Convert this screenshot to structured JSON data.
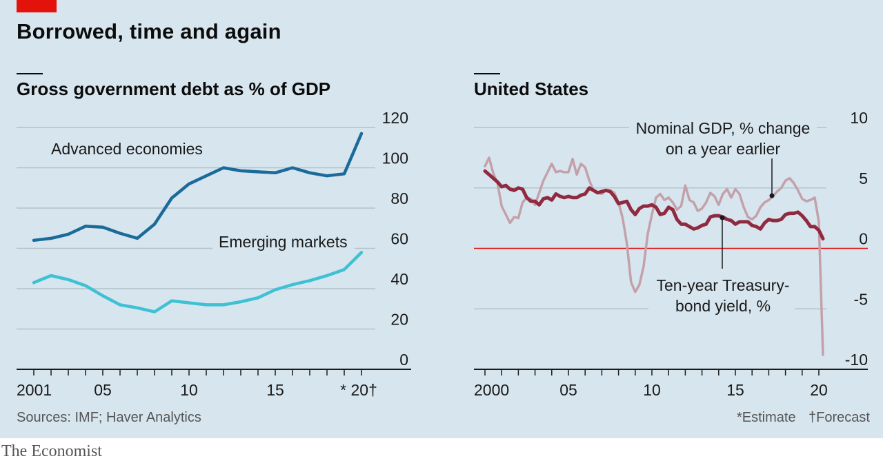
{
  "header": {
    "title": "Borrowed, time and again"
  },
  "footer": {
    "sources": "Sources: IMF; Haver Analytics",
    "estimate_note": "*Estimate",
    "forecast_note": "†Forecast",
    "brand": "The Economist"
  },
  "colors": {
    "background": "#d7e5ee",
    "brand_red": "#e3120b",
    "advanced": "#1a6b9a",
    "emerging": "#3ec1d3",
    "gdp": "#c4a1aa",
    "yield": "#8f2a40",
    "zero_line": "#e3120b",
    "grid": "#b4c2cc"
  },
  "chart_data": [
    {
      "type": "line",
      "title": "Gross government debt as % of GDP",
      "x_tick_labels": [
        "2001",
        "05",
        "10",
        "15",
        "* 20†"
      ],
      "y_tick_labels": [
        "0",
        "20",
        "40",
        "60",
        "80",
        "100",
        "120"
      ],
      "ylim": [
        0,
        120
      ],
      "xlim": [
        2001,
        2020
      ],
      "grid": true,
      "x": [
        2001,
        2002,
        2003,
        2004,
        2005,
        2006,
        2007,
        2008,
        2009,
        2010,
        2011,
        2012,
        2013,
        2014,
        2015,
        2016,
        2017,
        2018,
        2019,
        2020
      ],
      "series": [
        {
          "name": "Advanced economies",
          "values": [
            64,
            65,
            67,
            71,
            70.5,
            67.5,
            65,
            72,
            85,
            92,
            96,
            100,
            98.5,
            98,
            97.5,
            100,
            97.5,
            96,
            97,
            117
          ]
        },
        {
          "name": "Emerging markets",
          "values": [
            43,
            46.5,
            44.5,
            41.5,
            36.5,
            32,
            30.5,
            28.5,
            34,
            33,
            32,
            32,
            33.5,
            35.5,
            39.5,
            42,
            44,
            46.5,
            49.5,
            58
          ]
        }
      ],
      "notes": "2019 is an estimate (*); 2020 is a forecast (†)"
    },
    {
      "type": "line",
      "title": "United States",
      "x_tick_labels": [
        "2000",
        "05",
        "10",
        "15",
        "20"
      ],
      "y_tick_labels": [
        "10",
        "5",
        "0",
        "-5",
        "-10"
      ],
      "ylim": [
        -10,
        10
      ],
      "xlim": [
        2000,
        2020.25
      ],
      "grid": true,
      "x": [
        2000.0,
        2000.25,
        2000.5,
        2000.75,
        2001.0,
        2001.25,
        2001.5,
        2001.75,
        2002.0,
        2002.25,
        2002.5,
        2002.75,
        2003.0,
        2003.25,
        2003.5,
        2003.75,
        2004.0,
        2004.25,
        2004.5,
        2004.75,
        2005.0,
        2005.25,
        2005.5,
        2005.75,
        2006.0,
        2006.25,
        2006.5,
        2006.75,
        2007.0,
        2007.25,
        2007.5,
        2007.75,
        2008.0,
        2008.25,
        2008.5,
        2008.75,
        2009.0,
        2009.25,
        2009.5,
        2009.75,
        2010.0,
        2010.25,
        2010.5,
        2010.75,
        2011.0,
        2011.25,
        2011.5,
        2011.75,
        2012.0,
        2012.25,
        2012.5,
        2012.75,
        2013.0,
        2013.25,
        2013.5,
        2013.75,
        2014.0,
        2014.25,
        2014.5,
        2014.75,
        2015.0,
        2015.25,
        2015.5,
        2015.75,
        2016.0,
        2016.25,
        2016.5,
        2016.75,
        2017.0,
        2017.25,
        2017.5,
        2017.75,
        2018.0,
        2018.25,
        2018.5,
        2018.75,
        2019.0,
        2019.25,
        2019.5,
        2019.75,
        2020.0,
        2020.25
      ],
      "series": [
        {
          "name": "Nominal GDP, % change on a year earlier",
          "values": [
            6.8,
            7.5,
            6.2,
            5.4,
            3.5,
            2.8,
            2.1,
            2.6,
            2.5,
            3.8,
            4.2,
            4.1,
            3.6,
            4.6,
            5.6,
            6.3,
            7.0,
            6.3,
            6.4,
            6.3,
            6.3,
            7.4,
            6.1,
            7.0,
            6.7,
            5.6,
            4.8,
            4.6,
            4.5,
            4.8,
            4.8,
            4.6,
            3.8,
            2.5,
            0.4,
            -2.8,
            -3.6,
            -3.0,
            -1.5,
            1.2,
            2.8,
            4.2,
            4.5,
            4.0,
            4.2,
            3.8,
            3.2,
            3.5,
            5.2,
            4.0,
            3.8,
            3.1,
            3.3,
            3.8,
            4.6,
            4.3,
            3.6,
            4.5,
            4.9,
            4.2,
            4.9,
            4.5,
            3.4,
            2.6,
            2.4,
            2.7,
            3.4,
            3.8,
            4.0,
            4.3,
            4.7,
            5.0,
            5.6,
            5.8,
            5.4,
            4.8,
            4.1,
            3.9,
            4.0,
            4.2,
            2.2,
            -8.8
          ],
          "style": "thin"
        },
        {
          "name": "Ten-year Treasury-bond yield, %",
          "values": [
            6.4,
            6.1,
            5.8,
            5.5,
            5.1,
            5.2,
            4.9,
            4.8,
            5.0,
            4.9,
            4.2,
            3.9,
            3.9,
            3.6,
            4.1,
            4.2,
            4.0,
            4.5,
            4.3,
            4.2,
            4.3,
            4.2,
            4.2,
            4.4,
            4.5,
            5.0,
            4.8,
            4.6,
            4.7,
            4.8,
            4.7,
            4.3,
            3.7,
            3.8,
            3.9,
            3.2,
            2.8,
            3.3,
            3.5,
            3.5,
            3.6,
            3.4,
            2.8,
            2.9,
            3.4,
            3.2,
            2.4,
            2.0,
            2.0,
            1.8,
            1.6,
            1.7,
            1.9,
            2.0,
            2.6,
            2.7,
            2.7,
            2.6,
            2.4,
            2.3,
            2.0,
            2.2,
            2.2,
            2.2,
            1.9,
            1.8,
            1.6,
            2.1,
            2.4,
            2.3,
            2.3,
            2.4,
            2.8,
            2.9,
            2.9,
            3.0,
            2.7,
            2.3,
            1.8,
            1.8,
            1.5,
            0.8
          ],
          "style": "thick"
        }
      ],
      "annotations": [
        {
          "text_line1": "Nominal GDP,  % change",
          "text_line2": "on a year earlier"
        },
        {
          "text_line1": "Ten-year Treasury-",
          "text_line2": "bond yield, %"
        }
      ]
    }
  ]
}
